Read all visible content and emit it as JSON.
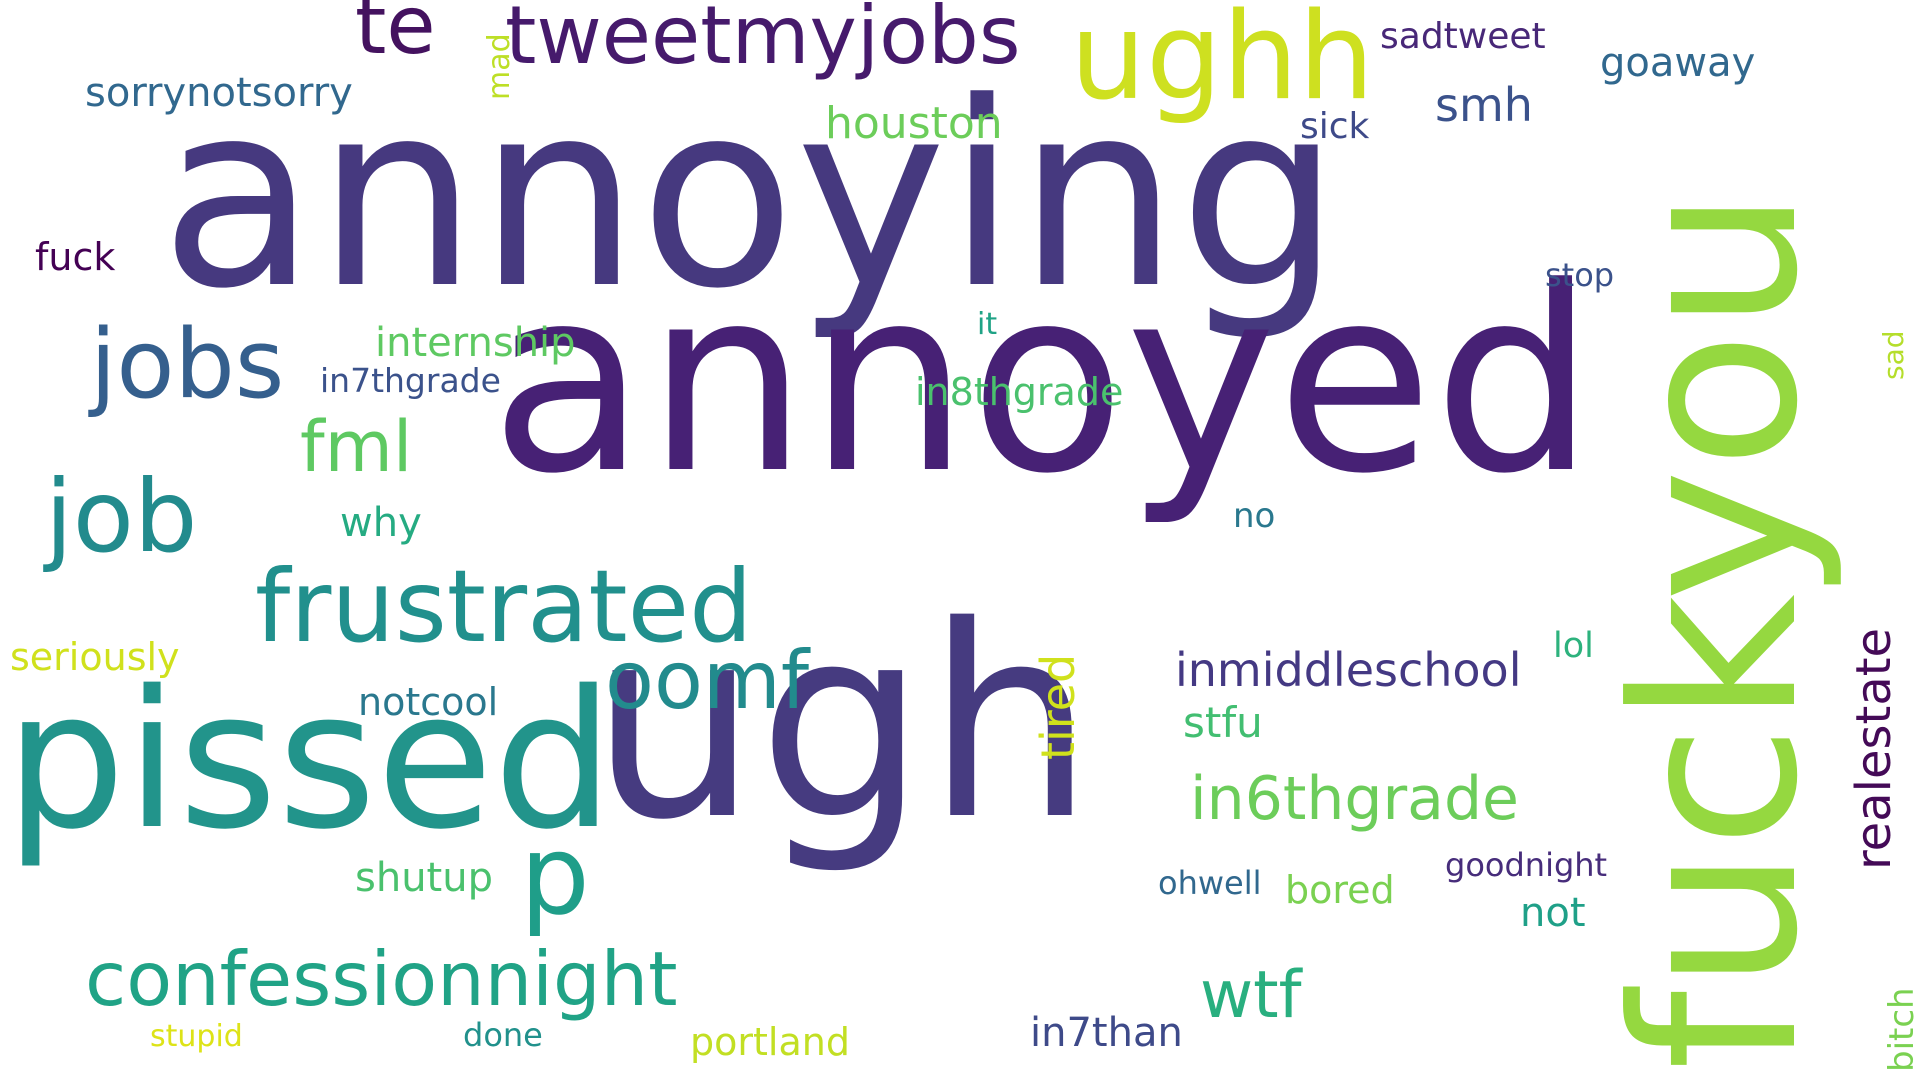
{
  "cloud": {
    "background": "#ffffff",
    "words": [
      {
        "text": "annoying",
        "color": "#46397f"
      },
      {
        "text": "annoyed",
        "color": "#472175"
      },
      {
        "text": "ugh",
        "color": "#463b80"
      },
      {
        "text": "fuckyou",
        "color": "#95d840"
      },
      {
        "text": "pissed",
        "color": "#22948b"
      },
      {
        "text": "ughh",
        "color": "#cee020"
      },
      {
        "text": "tweetmyjobs",
        "color": "#461a6c"
      },
      {
        "text": "te",
        "color": "#44125f"
      },
      {
        "text": "frustrated",
        "color": "#21908d"
      },
      {
        "text": "jobs",
        "color": "#355f8d"
      },
      {
        "text": "job",
        "color": "#228b8d"
      },
      {
        "text": "confessionnight",
        "color": "#20a386"
      },
      {
        "text": "oomf",
        "color": "#228b8d"
      },
      {
        "text": "p",
        "color": "#1f9e89"
      },
      {
        "text": "fml",
        "color": "#5ec962"
      },
      {
        "text": "in6thgrade",
        "color": "#6ccd5a"
      },
      {
        "text": "realestate",
        "color": "#440a57"
      },
      {
        "text": "wtf",
        "color": "#29af7f"
      },
      {
        "text": "inmiddleschool",
        "color": "#443983"
      },
      {
        "text": "tired",
        "color": "#d0e11c"
      },
      {
        "text": "sorrynotsorry",
        "color": "#31688e"
      },
      {
        "text": "houston",
        "color": "#6ccd5a"
      },
      {
        "text": "smh",
        "color": "#3b528b"
      },
      {
        "text": "goaway",
        "color": "#31688e"
      },
      {
        "text": "sadtweet",
        "color": "#482878"
      },
      {
        "text": "sick",
        "color": "#3e4a89"
      },
      {
        "text": "mad",
        "color": "#bddf26"
      },
      {
        "text": "fuck",
        "color": "#440154"
      },
      {
        "text": "internship",
        "color": "#5ec962"
      },
      {
        "text": "in7thgrade",
        "color": "#3b528b"
      },
      {
        "text": "in8thgrade",
        "color": "#4ac16d"
      },
      {
        "text": "it",
        "color": "#20a386"
      },
      {
        "text": "stop",
        "color": "#3b528b"
      },
      {
        "text": "sad",
        "color": "#b5de2b"
      },
      {
        "text": "why",
        "color": "#25ab82"
      },
      {
        "text": "no",
        "color": "#2a788e"
      },
      {
        "text": "seriously",
        "color": "#d0e11c"
      },
      {
        "text": "notcool",
        "color": "#2a788e"
      },
      {
        "text": "stfu",
        "color": "#42be71"
      },
      {
        "text": "lol",
        "color": "#2db27d"
      },
      {
        "text": "shutup",
        "color": "#4ac16d"
      },
      {
        "text": "ohwell",
        "color": "#31688e"
      },
      {
        "text": "bored",
        "color": "#7ad151"
      },
      {
        "text": "goodnight",
        "color": "#472d7b"
      },
      {
        "text": "not",
        "color": "#1fa088"
      },
      {
        "text": "in7than",
        "color": "#3e4a89"
      },
      {
        "text": "portland",
        "color": "#c2df23"
      },
      {
        "text": "done",
        "color": "#21918c"
      },
      {
        "text": "stupid",
        "color": "#dde318"
      },
      {
        "text": "bitch",
        "color": "#7ad151"
      }
    ]
  }
}
